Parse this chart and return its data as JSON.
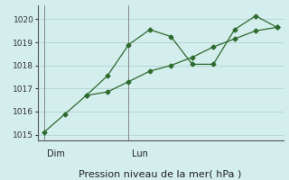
{
  "line1_x": [
    0,
    1,
    2,
    3,
    4,
    5,
    6,
    7,
    8,
    9,
    10,
    11
  ],
  "line1_y": [
    1015.1,
    1015.9,
    1016.7,
    1017.55,
    1018.9,
    1019.55,
    1019.25,
    1018.05,
    1018.05,
    1019.55,
    1020.15,
    1019.65
  ],
  "line2_x": [
    2,
    3,
    4,
    5,
    6,
    7,
    8,
    9,
    10,
    11
  ],
  "line2_y": [
    1016.7,
    1016.85,
    1017.3,
    1017.75,
    1018.0,
    1018.35,
    1018.8,
    1019.15,
    1019.5,
    1019.65
  ],
  "color": "#2d6a2d",
  "bg_color": "#d4eded",
  "grid_color": "#aacccc",
  "ylim": [
    1014.75,
    1020.6
  ],
  "yticks": [
    1015,
    1016,
    1017,
    1018,
    1019,
    1020
  ],
  "xlim": [
    -0.3,
    11.3
  ],
  "dim_x": 0,
  "lun_x": 4,
  "xlabel": "Pression niveau de la mer( hPa )",
  "xlabel_fontsize": 8,
  "tick_fontsize": 6.5,
  "day_fontsize": 7
}
